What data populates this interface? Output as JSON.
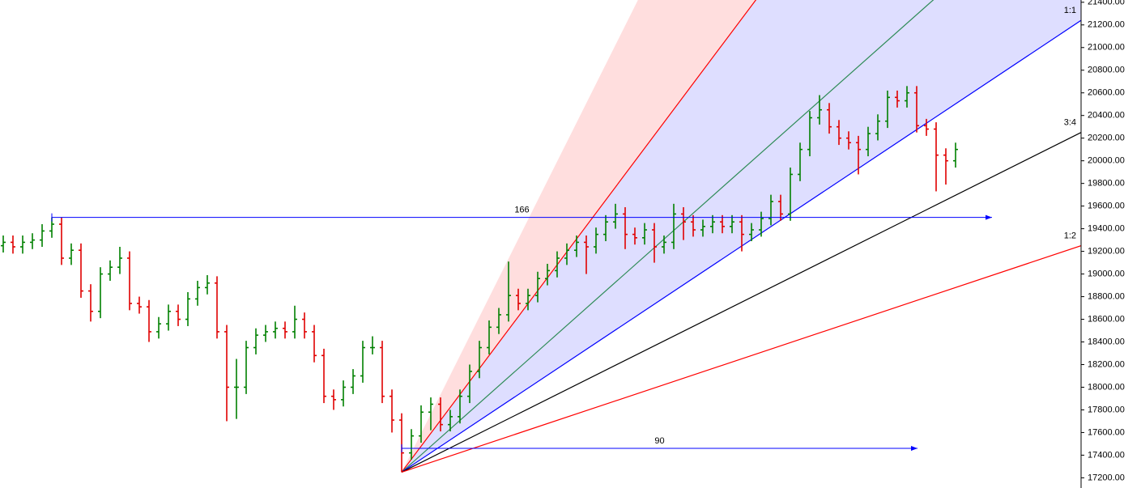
{
  "chart_data": {
    "type": "ohlc",
    "up_color": "#008000",
    "down_color": "#e00000",
    "open": [
      19250,
      19280,
      19240,
      19280,
      19300,
      19380,
      19440,
      19140,
      19210,
      18850,
      18670,
      19000,
      19060,
      19140,
      18740,
      18710,
      18490,
      18560,
      18670,
      18600,
      18780,
      18880,
      18920,
      18490,
      18000,
      18000,
      18350,
      18460,
      18490,
      18520,
      18490,
      18600,
      18490,
      18280,
      17920,
      17890,
      18000,
      18100,
      18350,
      18350,
      17920,
      17710,
      17420,
      17570,
      17780,
      17850,
      17670,
      17740,
      17920,
      18140,
      18350,
      18530,
      18640,
      18810,
      18740,
      18810,
      18960,
      19030,
      19140,
      19210,
      19280,
      19240,
      19350,
      19460,
      19530,
      19350,
      19320,
      19390,
      19240,
      19280,
      19530,
      19460,
      19390,
      19420,
      19460,
      19420,
      19460,
      19350,
      19390,
      19490,
      19640,
      19530,
      19880,
      20100,
      20380,
      20450,
      20300,
      20200,
      20160,
      20100,
      20240,
      20350,
      20560,
      20530,
      20600,
      20310,
      20280,
      20050,
      20000
    ],
    "high": [
      19340,
      19340,
      19340,
      19360,
      19440,
      19500,
      19500,
      19270,
      19270,
      18910,
      19060,
      19120,
      19240,
      19200,
      18800,
      18770,
      18620,
      18730,
      18730,
      18840,
      18940,
      18990,
      18980,
      18550,
      18250,
      18410,
      18520,
      18550,
      18580,
      18580,
      18720,
      18660,
      18550,
      18340,
      17980,
      18060,
      18160,
      18410,
      18450,
      18410,
      17980,
      17770,
      17630,
      17840,
      17910,
      17910,
      17800,
      17980,
      18200,
      18410,
      18590,
      18700,
      19110,
      18870,
      18870,
      19020,
      19090,
      19200,
      19270,
      19340,
      19340,
      19410,
      19520,
      19620,
      19590,
      19410,
      19450,
      19450,
      19340,
      19620,
      19590,
      19520,
      19480,
      19520,
      19520,
      19520,
      19520,
      19450,
      19550,
      19700,
      19700,
      19940,
      20160,
      20440,
      20580,
      20510,
      20360,
      20260,
      20220,
      20300,
      20410,
      20620,
      20620,
      20660,
      20660,
      20370,
      20340,
      20110,
      20160
    ],
    "low": [
      19190,
      19180,
      19180,
      19220,
      19240,
      19320,
      19080,
      19080,
      18790,
      18580,
      18610,
      18940,
      19000,
      18680,
      18650,
      18400,
      18430,
      18500,
      18540,
      18540,
      18720,
      18820,
      18430,
      17700,
      17720,
      17940,
      18290,
      18400,
      18430,
      18430,
      18430,
      18430,
      18220,
      17860,
      17800,
      17830,
      17940,
      18040,
      18290,
      17860,
      17600,
      17250,
      17360,
      17510,
      17620,
      17610,
      17610,
      17680,
      17860,
      18080,
      18290,
      18470,
      18580,
      18680,
      18680,
      18750,
      18900,
      18970,
      19080,
      19150,
      19000,
      19180,
      19290,
      19400,
      19220,
      19260,
      19260,
      19100,
      19180,
      19220,
      19300,
      19330,
      19330,
      19360,
      19360,
      19360,
      19200,
      19290,
      19330,
      19430,
      19470,
      19470,
      19820,
      20040,
      20320,
      20240,
      20140,
      20100,
      19880,
      20040,
      20180,
      20290,
      20470,
      20470,
      20250,
      20220,
      19730,
      19790,
      19940
    ],
    "close": [
      19280,
      19240,
      19280,
      19300,
      19380,
      19440,
      19140,
      19210,
      18850,
      18670,
      19000,
      19060,
      19140,
      18740,
      18710,
      18490,
      18560,
      18670,
      18600,
      18780,
      18880,
      18920,
      18490,
      18000,
      18000,
      18350,
      18460,
      18490,
      18520,
      18490,
      18600,
      18490,
      18280,
      17920,
      17890,
      18000,
      18100,
      18350,
      18350,
      17920,
      17710,
      17420,
      17570,
      17780,
      17850,
      17670,
      17740,
      17920,
      18140,
      18350,
      18530,
      18640,
      18810,
      18740,
      18810,
      18960,
      19030,
      19140,
      19210,
      19280,
      19240,
      19350,
      19460,
      19530,
      19350,
      19320,
      19390,
      19240,
      19280,
      19530,
      19460,
      19390,
      19420,
      19460,
      19420,
      19460,
      19350,
      19390,
      19490,
      19640,
      19530,
      19880,
      20100,
      20380,
      20450,
      20300,
      20200,
      20160,
      20100,
      20240,
      20350,
      20560,
      20530,
      20600,
      20310,
      20280,
      20050,
      20000,
      20100
    ],
    "fan": {
      "origin_price": 17250,
      "bands": [
        {
          "from": 29240,
          "to": 25250,
          "fill": "#ffdede"
        },
        {
          "from": 25250,
          "to": 21240,
          "fill": "#dedeff"
        }
      ],
      "lines": [
        {
          "end_price": 25250,
          "color": "#ff0000"
        },
        {
          "end_price": 22580,
          "color": "#2e8b57"
        },
        {
          "end_price": 21240,
          "color": "#0000ff",
          "label": "1:1"
        },
        {
          "end_price": 20250,
          "color": "#000000",
          "label": "3:4"
        },
        {
          "end_price": 19250,
          "color": "#ff0000",
          "label": "1:2"
        }
      ]
    },
    "measures": [
      {
        "count": 166,
        "price": 19500,
        "color": "#0000ff"
      },
      {
        "count": 90,
        "price": 17460,
        "color": "#0000ff"
      }
    ],
    "ylim": [
      17110,
      21420
    ],
    "yticks": [
      {
        "value": 17200,
        "label": "17200.00"
      },
      {
        "value": 17400,
        "label": "17400.00"
      },
      {
        "value": 17600,
        "label": "17600.00"
      },
      {
        "value": 17800,
        "label": "17800.00"
      },
      {
        "value": 18000,
        "label": "18000.00"
      },
      {
        "value": 18200,
        "label": "18200.00"
      },
      {
        "value": 18400,
        "label": "18400.00"
      },
      {
        "value": 18600,
        "label": "18600.00"
      },
      {
        "value": 18800,
        "label": "18800.00"
      },
      {
        "value": 19000,
        "label": "19000.00"
      },
      {
        "value": 19200,
        "label": "19200.00"
      },
      {
        "value": 19400,
        "label": "19400.00"
      },
      {
        "value": 19600,
        "label": "19600.00"
      },
      {
        "value": 19800,
        "label": "19800.00"
      },
      {
        "value": 20000,
        "label": "20000.00"
      },
      {
        "value": 20200,
        "label": "20200.00"
      },
      {
        "value": 20400,
        "label": "20400.00"
      },
      {
        "value": 20600,
        "label": "20600.00"
      },
      {
        "value": 20800,
        "label": "20800.00"
      },
      {
        "value": 21000,
        "label": "21000.00"
      },
      {
        "value": 21200,
        "label": "21200.00"
      },
      {
        "value": 21400,
        "label": "21400.00"
      }
    ]
  }
}
